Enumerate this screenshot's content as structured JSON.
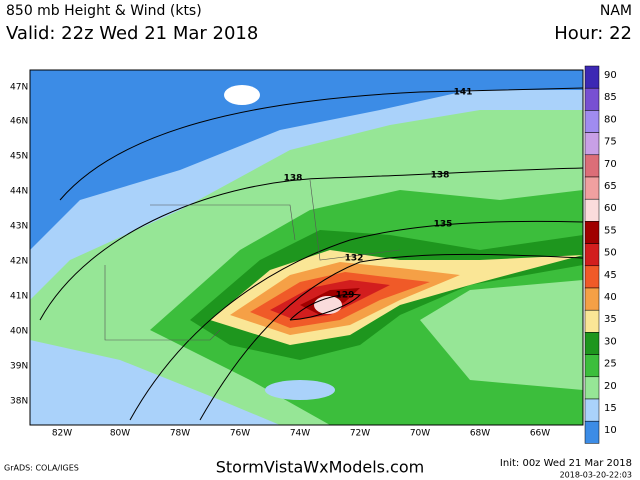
{
  "header": {
    "title": "850 mb Height & Wind (kts)",
    "valid": "Valid: 22z Wed 21 Mar 2018",
    "model": "NAM",
    "hour": "Hour: 22"
  },
  "latitude_labels": [
    "47N",
    "46N",
    "45N",
    "44N",
    "43N",
    "42N",
    "41N",
    "40N",
    "39N",
    "38N"
  ],
  "longitude_labels": [
    "82W",
    "80W",
    "78W",
    "76W",
    "74W",
    "72W",
    "70W",
    "68W",
    "66W"
  ],
  "contour_labels": [
    "141",
    "138",
    "138",
    "135",
    "132",
    "129"
  ],
  "colorbar": {
    "levels": [
      90,
      85,
      80,
      75,
      70,
      65,
      60,
      55,
      50,
      45,
      40,
      35,
      30,
      25,
      20,
      15,
      10
    ],
    "colors": [
      "#3c28b4",
      "#7850d2",
      "#a08cf0",
      "#c8a0e6",
      "#dc6e78",
      "#f0a0a0",
      "#fadcdc",
      "#a00000",
      "#d21e1e",
      "#f05a28",
      "#f5a046",
      "#fae696",
      "#1e961e",
      "#3cbe3c",
      "#96e696",
      "#aad2fa",
      "#3c8ce6"
    ]
  },
  "footer": {
    "software": "GrADS: COLA/IGES",
    "site": "StormVistaWxModels.com",
    "init": "Init: 00z Wed 21 Mar 2018",
    "stamp": "2018-03-20-22:03"
  }
}
